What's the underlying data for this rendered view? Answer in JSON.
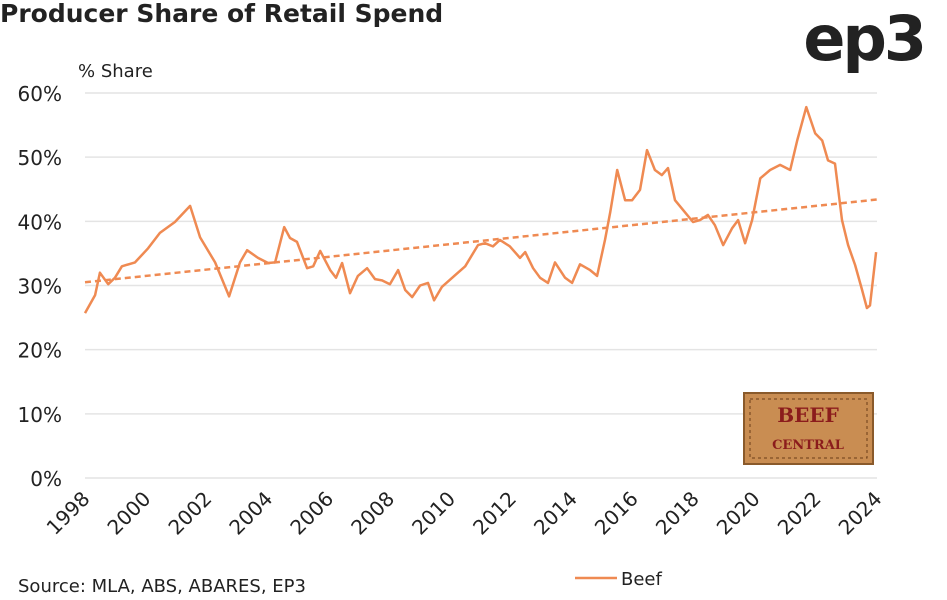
{
  "chart_data": {
    "type": "line",
    "title": "Producer Share of Retail Spend",
    "y_label": "% Share",
    "source": "Source: MLA, ABS, ABARES, EP3",
    "brand": "ep3",
    "badge": [
      "BEEF",
      "CENTRAL"
    ],
    "xlim": [
      1998,
      2024
    ],
    "xticks": [
      1998,
      2000,
      2002,
      2004,
      2006,
      2008,
      2010,
      2012,
      2014,
      2016,
      2018,
      2020,
      2022,
      2024
    ],
    "ylim": [
      0,
      60
    ],
    "yticks": [
      {
        "value": 0,
        "label": "0%"
      },
      {
        "value": 10,
        "label": "10%"
      },
      {
        "value": 20,
        "label": "20%"
      },
      {
        "value": 30,
        "label": "30%"
      },
      {
        "value": 40,
        "label": "40%"
      },
      {
        "value": 50,
        "label": "50%"
      },
      {
        "value": 60,
        "label": "60%"
      }
    ],
    "grid": true,
    "legend": "bottom",
    "x": [
      1998.0,
      1998.33,
      1998.49,
      1998.76,
      1998.98,
      1999.21,
      1999.64,
      2000.07,
      2000.46,
      2000.95,
      2001.45,
      2001.78,
      2002.27,
      2002.73,
      2003.09,
      2003.32,
      2003.68,
      2004.01,
      2004.24,
      2004.54,
      2004.73,
      2004.96,
      2005.29,
      2005.49,
      2005.72,
      2006.05,
      2006.24,
      2006.44,
      2006.7,
      2006.96,
      2007.26,
      2007.52,
      2007.75,
      2008.01,
      2008.28,
      2008.51,
      2008.74,
      2009.0,
      2009.26,
      2009.46,
      2009.72,
      2010.15,
      2010.48,
      2010.9,
      2011.13,
      2011.39,
      2011.62,
      2011.95,
      2012.28,
      2012.45,
      2012.71,
      2012.94,
      2013.2,
      2013.43,
      2013.76,
      2013.99,
      2014.25,
      2014.58,
      2014.81,
      2015.07,
      2015.24,
      2015.47,
      2015.73,
      2015.96,
      2016.22,
      2016.45,
      2016.71,
      2016.94,
      2017.14,
      2017.37,
      2017.7,
      2017.96,
      2018.19,
      2018.45,
      2018.68,
      2018.95,
      2019.24,
      2019.44,
      2019.67,
      2019.9,
      2020.17,
      2020.49,
      2020.82,
      2021.15,
      2021.38,
      2021.68,
      2021.97,
      2022.2,
      2022.39,
      2022.62,
      2022.85,
      2023.05,
      2023.28,
      2023.51,
      2023.67,
      2023.77,
      2023.97
    ],
    "series": [
      {
        "name": "Beef",
        "color": "#ef8a52",
        "values": [
          25.7,
          28.5,
          32,
          30.2,
          31.2,
          33,
          33.6,
          35.8,
          38.2,
          39.9,
          42.4,
          37.5,
          33.6,
          28.3,
          33.6,
          35.5,
          34.3,
          33.5,
          33.6,
          39.1,
          37.4,
          36.8,
          32.7,
          33,
          35.4,
          32.4,
          31.2,
          33.5,
          28.8,
          31.5,
          32.7,
          31,
          30.8,
          30.2,
          32.4,
          29.3,
          28.2,
          30,
          30.4,
          27.7,
          29.8,
          31.6,
          33,
          36.3,
          36.6,
          36.1,
          37.1,
          36.1,
          34.3,
          35.2,
          32.7,
          31.2,
          30.4,
          33.6,
          31.2,
          30.4,
          33.3,
          32.4,
          31.5,
          37.1,
          41.4,
          48,
          43.3,
          43.3,
          44.9,
          51.1,
          48,
          47.2,
          48.3,
          43.3,
          41.4,
          39.9,
          40.2,
          41,
          39.4,
          36.3,
          38.9,
          40.2,
          36.6,
          40.2,
          46.7,
          48,
          48.8,
          48,
          52.6,
          57.8,
          53.7,
          52.6,
          49.5,
          49,
          40.2,
          36.3,
          33.2,
          29.3,
          26.5,
          26.9,
          35.2
        ]
      }
    ],
    "trendline": {
      "color": "#ef8a52",
      "x": [
        1998,
        2024
      ],
      "values": [
        30.5,
        43.4
      ]
    }
  }
}
